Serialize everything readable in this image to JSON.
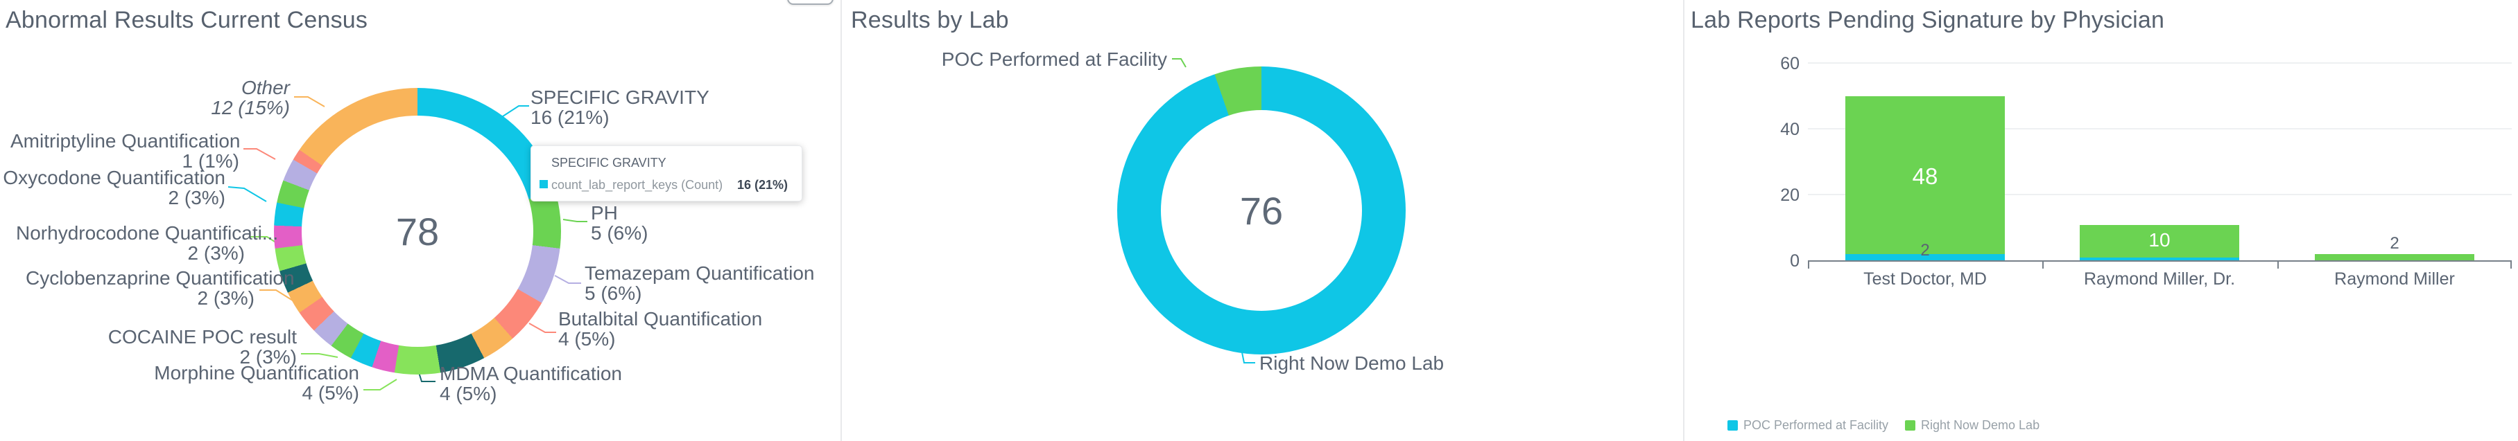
{
  "palette": {
    "cyan": "#0fc6e6",
    "green": "#6bd352",
    "lavender": "#b5afe2",
    "salmon": "#fc8879",
    "orange": "#f9b45a",
    "darkteal": "#17696d",
    "lightgreen": "#87e35b",
    "magenta": "#e35fc6"
  },
  "colors": {
    "title_text": "#57616e",
    "label_text": "#5a6472",
    "secondary_text": "#98a1a8",
    "gridline": "#eef0f2",
    "axis_line": "#778089",
    "divider": "#e8e9eb"
  },
  "chart_data": [
    {
      "type": "pie",
      "donut": true,
      "title": "Abnormal Results Current Census",
      "center_label": "78",
      "total": 78,
      "legend_position": "none",
      "segments": [
        {
          "label": "SPECIFIC GRAVITY",
          "value": 16,
          "display": "16 (21%)",
          "color": "cyan"
        },
        {
          "label": "PH",
          "value": 5,
          "display": "5 (6%)",
          "color": "green"
        },
        {
          "label": "Temazepam Quantification",
          "value": 5,
          "display": "5 (6%)",
          "color": "lavender"
        },
        {
          "label": "Butalbital Quantification",
          "value": 4,
          "display": "4 (5%)",
          "color": "salmon"
        },
        {
          "label": null,
          "value": 3,
          "color": "orange"
        },
        {
          "label": "MDMA Quantification",
          "value": 4,
          "display": "4 (5%)",
          "color": "darkteal"
        },
        {
          "label": "Morphine Quantification",
          "value": 4,
          "display": "4 (5%)",
          "color": "lightgreen"
        },
        {
          "label": null,
          "value": 2,
          "color": "magenta"
        },
        {
          "label": null,
          "value": 2,
          "color": "cyan"
        },
        {
          "label": "COCAINE POC result",
          "value": 2,
          "display": "2 (3%)",
          "color": "green"
        },
        {
          "label": null,
          "value": 2,
          "color": "lavender"
        },
        {
          "label": null,
          "value": 2,
          "color": "salmon"
        },
        {
          "label": "Cyclobenzaprine Quantification",
          "value": 2,
          "display": "2 (3%)",
          "color": "orange"
        },
        {
          "label": null,
          "value": 2,
          "color": "darkteal"
        },
        {
          "label": "Norhydrocodone Quantificati...",
          "value": 2,
          "display": "2 (3%)",
          "color": "lightgreen"
        },
        {
          "label": null,
          "value": 2,
          "color": "magenta"
        },
        {
          "label": "Oxycodone Quantification",
          "value": 2,
          "display": "2 (3%)",
          "color": "cyan"
        },
        {
          "label": null,
          "value": 2,
          "color": "green"
        },
        {
          "label": null,
          "value": 2,
          "color": "lavender"
        },
        {
          "label": "Amitriptyline Quantification",
          "value": 1,
          "display": "1 (1%)",
          "color": "salmon"
        },
        {
          "label": "Other",
          "value": 12,
          "display": "12 (15%)",
          "color": "orange"
        }
      ],
      "tooltip": {
        "title": "SPECIFIC GRAVITY",
        "metric": "count_lab_report_keys (Count)",
        "value": "16 (21%)"
      }
    },
    {
      "type": "pie",
      "donut": true,
      "title": "Results by Lab",
      "center_label": "76",
      "total": 76,
      "legend_position": "none",
      "segments": [
        {
          "label": "Right Now Demo Lab",
          "value": 72,
          "color": "cyan"
        },
        {
          "label": "POC Performed at Facility",
          "value": 4,
          "color": "green"
        }
      ]
    },
    {
      "type": "bar",
      "stacked": true,
      "title": "Lab Reports Pending Signature by Physician",
      "categories": [
        "Test Doctor, MD",
        "Raymond Miller, Dr.",
        "Raymond Miller"
      ],
      "series": [
        {
          "name": "POC Performed at Facility",
          "color": "cyan",
          "values": [
            2,
            1,
            0
          ]
        },
        {
          "name": "Right Now Demo Lab",
          "color": "green",
          "values": [
            48,
            10,
            2
          ]
        }
      ],
      "ylim": [
        0,
        60
      ],
      "yticks": [
        60,
        40,
        20,
        0
      ],
      "grid": true,
      "legend_position": "bottom",
      "value_labels": {
        "test_doctor_green": "48",
        "test_doctor_poc": "2",
        "raymond_dr_green": "10",
        "raymond_green": "2"
      }
    }
  ]
}
